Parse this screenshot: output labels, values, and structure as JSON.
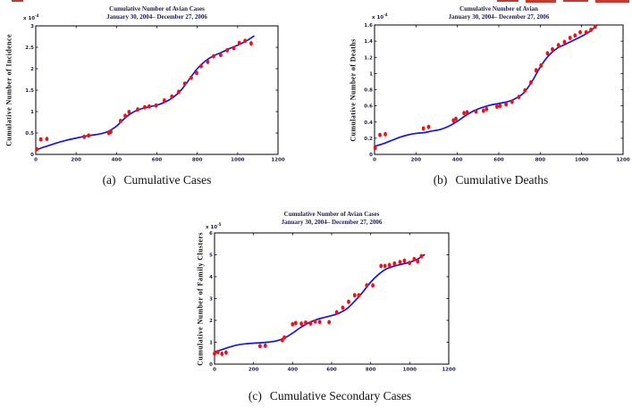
{
  "colors": {
    "point": "#ee1212",
    "curve": "#1414ee",
    "axis": "#000000",
    "plot_text": "#1c1c4e",
    "caption_text": "#111111",
    "background": "#ffffff"
  },
  "chart_data": [
    {
      "type": "scatter",
      "title": "Cumulative Number of Avian Cases",
      "subtitle": "January 30, 2004– December 27, 2006",
      "ylabel": "Cumulative Number of Incidence",
      "xlabel": "",
      "y_scale_label": {
        "base": "x 10",
        "power": "-4"
      },
      "caption": {
        "label": "(a)",
        "text": "Cumulative Cases"
      },
      "xlim": [
        0,
        1200
      ],
      "ylim": [
        0,
        3
      ],
      "xticks": [
        0,
        200,
        400,
        600,
        800,
        1000,
        1200
      ],
      "yticks": [
        0,
        0.5,
        1,
        1.5,
        2,
        2.5,
        3
      ],
      "legend": "none",
      "grid": false,
      "series": [
        {
          "name": "observed-data",
          "kind": "scatter",
          "points": [
            [
              5,
              0.12
            ],
            [
              25,
              0.35
            ],
            [
              55,
              0.36
            ],
            [
              240,
              0.41
            ],
            [
              262,
              0.44
            ],
            [
              362,
              0.5
            ],
            [
              372,
              0.53
            ],
            [
              420,
              0.78
            ],
            [
              443,
              0.9
            ],
            [
              462,
              0.99
            ],
            [
              505,
              1.05
            ],
            [
              540,
              1.1
            ],
            [
              562,
              1.12
            ],
            [
              596,
              1.14
            ],
            [
              637,
              1.26
            ],
            [
              674,
              1.35
            ],
            [
              708,
              1.46
            ],
            [
              738,
              1.65
            ],
            [
              770,
              1.79
            ],
            [
              797,
              1.9
            ],
            [
              819,
              2.06
            ],
            [
              852,
              2.16
            ],
            [
              881,
              2.29
            ],
            [
              916,
              2.32
            ],
            [
              948,
              2.43
            ],
            [
              981,
              2.48
            ],
            [
              1008,
              2.6
            ],
            [
              1037,
              2.65
            ],
            [
              1067,
              2.59
            ]
          ]
        },
        {
          "name": "fitted-curve",
          "kind": "line",
          "points": [
            [
              0,
              0.1
            ],
            [
              40,
              0.17
            ],
            [
              80,
              0.23
            ],
            [
              120,
              0.29
            ],
            [
              160,
              0.34
            ],
            [
              200,
              0.38
            ],
            [
              240,
              0.42
            ],
            [
              280,
              0.45
            ],
            [
              320,
              0.48
            ],
            [
              360,
              0.54
            ],
            [
              400,
              0.66
            ],
            [
              440,
              0.84
            ],
            [
              480,
              0.98
            ],
            [
              520,
              1.06
            ],
            [
              560,
              1.11
            ],
            [
              600,
              1.15
            ],
            [
              640,
              1.22
            ],
            [
              680,
              1.33
            ],
            [
              720,
              1.5
            ],
            [
              760,
              1.75
            ],
            [
              800,
              2.0
            ],
            [
              840,
              2.18
            ],
            [
              880,
              2.3
            ],
            [
              920,
              2.38
            ],
            [
              960,
              2.47
            ],
            [
              1000,
              2.55
            ],
            [
              1040,
              2.64
            ],
            [
              1080,
              2.76
            ]
          ]
        }
      ]
    },
    {
      "type": "scatter",
      "title": "Cumulative Number of Avian",
      "subtitle": "January 30, 2004– December 27, 2006",
      "ylabel": "Cumulative Number of Deaths",
      "xlabel": "",
      "y_scale_label": {
        "base": "x 10",
        "power": "-4"
      },
      "caption": {
        "label": "(b)",
        "text": "Cumulative Deaths"
      },
      "xlim": [
        0,
        1200
      ],
      "ylim": [
        0,
        1.6
      ],
      "xticks": [
        0,
        200,
        400,
        600,
        800,
        1000,
        1200
      ],
      "yticks": [
        0,
        0.2,
        0.4,
        0.6,
        0.8,
        1,
        1.2,
        1.4,
        1.6
      ],
      "legend": "none",
      "grid": false,
      "series": [
        {
          "name": "observed-data",
          "kind": "scatter",
          "points": [
            [
              3,
              0.08
            ],
            [
              26,
              0.24
            ],
            [
              52,
              0.25
            ],
            [
              236,
              0.32
            ],
            [
              261,
              0.34
            ],
            [
              381,
              0.42
            ],
            [
              393,
              0.44
            ],
            [
              432,
              0.51
            ],
            [
              447,
              0.52
            ],
            [
              490,
              0.53
            ],
            [
              526,
              0.54
            ],
            [
              541,
              0.56
            ],
            [
              591,
              0.59
            ],
            [
              606,
              0.6
            ],
            [
              635,
              0.62
            ],
            [
              664,
              0.65
            ],
            [
              697,
              0.71
            ],
            [
              726,
              0.79
            ],
            [
              755,
              0.89
            ],
            [
              780,
              1.04
            ],
            [
              804,
              1.1
            ],
            [
              835,
              1.25
            ],
            [
              859,
              1.3
            ],
            [
              888,
              1.35
            ],
            [
              917,
              1.39
            ],
            [
              944,
              1.44
            ],
            [
              968,
              1.47
            ],
            [
              993,
              1.51
            ],
            [
              1022,
              1.51
            ],
            [
              1045,
              1.54
            ],
            [
              1065,
              1.58
            ]
          ]
        },
        {
          "name": "fitted-curve",
          "kind": "line",
          "points": [
            [
              0,
              0.1
            ],
            [
              40,
              0.13
            ],
            [
              80,
              0.17
            ],
            [
              120,
              0.21
            ],
            [
              160,
              0.24
            ],
            [
              200,
              0.26
            ],
            [
              240,
              0.27
            ],
            [
              280,
              0.29
            ],
            [
              320,
              0.31
            ],
            [
              360,
              0.35
            ],
            [
              400,
              0.41
            ],
            [
              440,
              0.48
            ],
            [
              480,
              0.54
            ],
            [
              520,
              0.58
            ],
            [
              560,
              0.61
            ],
            [
              600,
              0.63
            ],
            [
              640,
              0.65
            ],
            [
              680,
              0.69
            ],
            [
              720,
              0.76
            ],
            [
              760,
              0.9
            ],
            [
              800,
              1.08
            ],
            [
              840,
              1.22
            ],
            [
              880,
              1.31
            ],
            [
              920,
              1.36
            ],
            [
              960,
              1.41
            ],
            [
              1000,
              1.46
            ],
            [
              1040,
              1.52
            ],
            [
              1075,
              1.6
            ]
          ]
        }
      ]
    },
    {
      "type": "scatter",
      "title": "Cumulative Number of Avian Cases",
      "subtitle": "January 30, 2004– December 27, 2006",
      "ylabel": "Cumulative Number of Family Clusters",
      "xlabel": "",
      "y_scale_label": {
        "base": "x 10",
        "power": "-5"
      },
      "caption": {
        "label": "(c)",
        "text": "Cumulative Secondary Cases"
      },
      "xlim": [
        0,
        1200
      ],
      "ylim": [
        0,
        6
      ],
      "xticks": [
        0,
        200,
        400,
        600,
        800,
        1000,
        1200
      ],
      "yticks": [
        0,
        1,
        2,
        3,
        4,
        5,
        6
      ],
      "legend": "none",
      "grid": false,
      "series": [
        {
          "name": "observed-data",
          "kind": "scatter",
          "points": [
            [
              0,
              0.48
            ],
            [
              17,
              0.55
            ],
            [
              38,
              0.47
            ],
            [
              59,
              0.53
            ],
            [
              233,
              0.82
            ],
            [
              260,
              0.84
            ],
            [
              347,
              1.1
            ],
            [
              358,
              1.22
            ],
            [
              400,
              1.82
            ],
            [
              416,
              1.88
            ],
            [
              445,
              1.85
            ],
            [
              467,
              1.9
            ],
            [
              492,
              1.86
            ],
            [
              516,
              1.95
            ],
            [
              539,
              1.93
            ],
            [
              587,
              1.92
            ],
            [
              626,
              2.37
            ],
            [
              657,
              2.58
            ],
            [
              687,
              2.85
            ],
            [
              718,
              3.15
            ],
            [
              739,
              3.15
            ],
            [
              780,
              3.6
            ],
            [
              811,
              3.6
            ],
            [
              853,
              4.49
            ],
            [
              873,
              4.49
            ],
            [
              896,
              4.53
            ],
            [
              922,
              4.6
            ],
            [
              950,
              4.67
            ],
            [
              973,
              4.73
            ],
            [
              999,
              4.63
            ],
            [
              1023,
              4.8
            ],
            [
              1041,
              4.7
            ],
            [
              1060,
              4.94
            ]
          ]
        },
        {
          "name": "fitted-curve",
          "kind": "line",
          "points": [
            [
              0,
              0.55
            ],
            [
              40,
              0.67
            ],
            [
              80,
              0.79
            ],
            [
              120,
              0.88
            ],
            [
              160,
              0.93
            ],
            [
              200,
              0.96
            ],
            [
              240,
              0.98
            ],
            [
              280,
              1.01
            ],
            [
              320,
              1.07
            ],
            [
              360,
              1.2
            ],
            [
              400,
              1.42
            ],
            [
              440,
              1.67
            ],
            [
              480,
              1.88
            ],
            [
              520,
              2.03
            ],
            [
              560,
              2.13
            ],
            [
              600,
              2.22
            ],
            [
              640,
              2.34
            ],
            [
              680,
              2.55
            ],
            [
              720,
              2.9
            ],
            [
              760,
              3.3
            ],
            [
              800,
              3.75
            ],
            [
              840,
              4.1
            ],
            [
              880,
              4.35
            ],
            [
              920,
              4.48
            ],
            [
              960,
              4.57
            ],
            [
              1000,
              4.66
            ],
            [
              1040,
              4.8
            ],
            [
              1075,
              5.0
            ]
          ]
        }
      ]
    }
  ]
}
